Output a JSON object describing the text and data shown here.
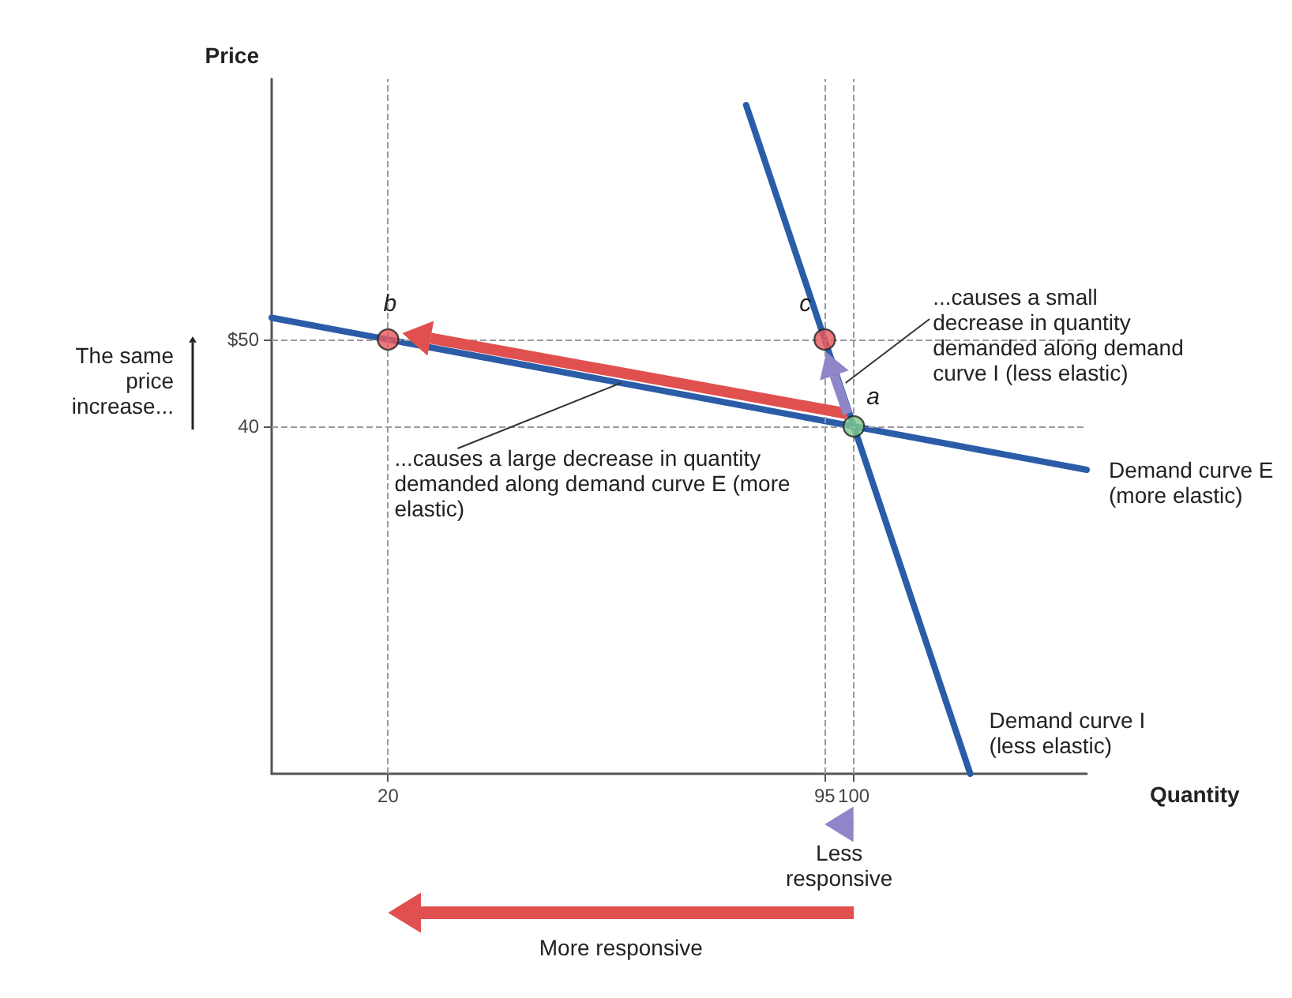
{
  "chart_data": {
    "type": "line",
    "xlabel": "Quantity",
    "ylabel": "Price",
    "xlim": [
      0,
      140
    ],
    "ylim": [
      0,
      80
    ],
    "xticks": [
      20,
      95,
      100
    ],
    "yticks": [
      40,
      {
        "value": 50,
        "label": "$50"
      }
    ],
    "grid": false,
    "legend": false,
    "marker": "none",
    "line_style": "solid",
    "series": [
      {
        "name": "Demand curve E (more elastic)",
        "color": "#2b5ca8",
        "x": [
          0,
          140
        ],
        "values": [
          52.5,
          35
        ]
      },
      {
        "name": "Demand curve I (less elastic)",
        "color": "#2b5ca8",
        "x": [
          81.5,
          120
        ],
        "values": [
          77,
          0
        ]
      },
      {
        "type": "scatter",
        "marker": "circle",
        "x": [
          20,
          95,
          100
        ],
        "values": [
          50,
          50,
          40
        ],
        "colors": [
          "#e8575a",
          "#e8575a",
          "#7fc98f"
        ]
      }
    ],
    "ref_lines": [
      {
        "axis": "y",
        "value": 50,
        "color": "#9a9a9a",
        "line_style": "dashed"
      },
      {
        "axis": "y",
        "value": 40,
        "color": "#9a9a9a",
        "line_style": "dashed"
      },
      {
        "axis": "x",
        "value": 20,
        "color": "#9a9a9a",
        "line_style": "dashed"
      },
      {
        "axis": "x",
        "value": 95,
        "color": "#9a9a9a",
        "line_style": "dashed"
      },
      {
        "axis": "x",
        "value": 100,
        "color": "#9a9a9a",
        "line_style": "dashed"
      }
    ],
    "annotations": [
      {
        "text": "a",
        "x": 100,
        "y": 40
      },
      {
        "text": "b",
        "x": 20,
        "y": 50
      },
      {
        "text": "c",
        "x": 95,
        "y": 50
      },
      "The same price increase...",
      {
        "text": "...causes a small decrease in quantity demanded along demand curve I (less elastic)",
        "x": 97.5,
        "y": 45
      },
      {
        "text": "...causes a large decrease in quantity demanded along demand curve E (more elastic)",
        "x": 60,
        "y": 45
      },
      "Less responsive",
      "More responsive"
    ]
  }
}
